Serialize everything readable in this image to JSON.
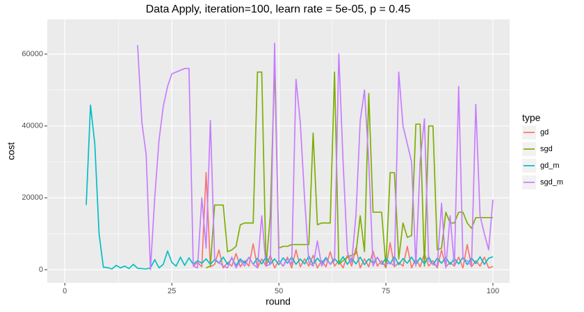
{
  "chart_data": {
    "type": "line",
    "title": "Data Apply, iteration=100, learn rate = 5e-05, p = 0.45",
    "x_label": "round",
    "y_label": "cost",
    "legend_title": "type",
    "legend_position": "right",
    "grid": true,
    "x": [
      5,
      6,
      7,
      8,
      9,
      10,
      11,
      12,
      13,
      14,
      15,
      16,
      17,
      18,
      19,
      20,
      21,
      22,
      23,
      24,
      25,
      26,
      27,
      28,
      29,
      30,
      31,
      32,
      33,
      34,
      35,
      36,
      37,
      38,
      39,
      40,
      41,
      42,
      43,
      44,
      45,
      46,
      47,
      48,
      49,
      50,
      51,
      52,
      53,
      54,
      55,
      56,
      57,
      58,
      59,
      60,
      61,
      62,
      63,
      64,
      65,
      66,
      67,
      68,
      69,
      70,
      71,
      72,
      73,
      74,
      75,
      76,
      77,
      78,
      79,
      80,
      81,
      82,
      83,
      84,
      85,
      86,
      87,
      88,
      89,
      90,
      91,
      92,
      93,
      94,
      95,
      96,
      97,
      98,
      99,
      100
    ],
    "xlim": [
      -4.1,
      103.9
    ],
    "xticks": [
      0,
      25,
      50,
      75,
      100
    ],
    "ylim": [
      -3670,
      69650
    ],
    "yticks": [
      0,
      20000,
      40000,
      60000
    ],
    "series": [
      {
        "name": "gd",
        "color": "#F8766D",
        "values": [
          null,
          null,
          null,
          null,
          null,
          null,
          null,
          null,
          null,
          null,
          null,
          null,
          null,
          null,
          null,
          null,
          null,
          null,
          null,
          null,
          null,
          null,
          null,
          null,
          null,
          1000,
          2000,
          800,
          27000,
          800,
          1500,
          5500,
          500,
          2000,
          1000,
          4500,
          800,
          2500,
          1000,
          7200,
          500,
          3000,
          1000,
          4000,
          500,
          2500,
          1000,
          3500,
          500,
          5500,
          800,
          3000,
          1000,
          4000,
          500,
          2500,
          800,
          5000,
          1000,
          2500,
          500,
          4000,
          1000,
          6000,
          500,
          3000,
          800,
          5200,
          1000,
          2500,
          500,
          7500,
          800,
          2000,
          1000,
          6500,
          500,
          3000,
          800,
          4500,
          1000,
          2500,
          500,
          5500,
          800,
          2000,
          1000,
          3500,
          500,
          7000,
          800,
          2500,
          1000,
          3500,
          500,
          900
        ]
      },
      {
        "name": "sgd",
        "color": "#7CAE00",
        "values": [
          null,
          null,
          null,
          null,
          null,
          null,
          null,
          null,
          null,
          null,
          null,
          null,
          null,
          null,
          null,
          null,
          null,
          null,
          null,
          null,
          null,
          null,
          null,
          null,
          null,
          null,
          null,
          null,
          500,
          1000,
          18000,
          18000,
          18000,
          5000,
          5500,
          6500,
          12500,
          13000,
          13000,
          13000,
          55000,
          55000,
          1000,
          15000,
          57000,
          6000,
          6500,
          6500,
          7000,
          7000,
          7000,
          7000,
          7000,
          38000,
          12500,
          13000,
          13000,
          13000,
          55000,
          1500,
          2500,
          3500,
          4000,
          4500,
          15000,
          5000,
          49000,
          16000,
          16000,
          16000,
          1000,
          27000,
          27000,
          3000,
          13000,
          9000,
          9500,
          40500,
          40500,
          1000,
          40000,
          40000,
          5500,
          6000,
          16000,
          13000,
          13000,
          16000,
          16000,
          13000,
          11500,
          14500,
          14500,
          14500,
          14500,
          14500
        ]
      },
      {
        "name": "gd_m",
        "color": "#00BFC4",
        "values": [
          18000,
          45800,
          35000,
          10000,
          700,
          600,
          200,
          1200,
          500,
          1000,
          300,
          1500,
          400,
          300,
          200,
          500,
          2800,
          500,
          1500,
          5200,
          2000,
          1000,
          3500,
          1200,
          3300,
          1500,
          2500,
          1800,
          3000,
          1500,
          2800,
          1800,
          3500,
          1500,
          3200,
          1200,
          3000,
          1800,
          3400,
          1500,
          3200,
          1600,
          3600,
          1500,
          3000,
          1400,
          3300,
          1800,
          3500,
          1500,
          3000,
          1600,
          3800,
          1400,
          3200,
          1700,
          3400,
          1500,
          3100,
          1800,
          3600,
          1500,
          3200,
          1600,
          3500,
          1400,
          3000,
          1800,
          3400,
          1500,
          3200,
          1600,
          3700,
          1400,
          3100,
          1800,
          3500,
          1500,
          3300,
          1600,
          3600,
          1400,
          3200,
          1800,
          3400,
          1500,
          3100,
          1600,
          3500,
          1400,
          3300,
          1700,
          3600,
          1500,
          3200,
          3600
        ]
      },
      {
        "name": "sgd_m",
        "color": "#C77CFF",
        "values": [
          null,
          null,
          null,
          null,
          null,
          null,
          null,
          null,
          null,
          null,
          null,
          null,
          62500,
          41000,
          32000,
          0,
          20000,
          36000,
          45500,
          51000,
          54500,
          55000,
          55500,
          56000,
          56000,
          1000,
          500,
          20000,
          6000,
          41500,
          3000,
          2000,
          1000,
          500,
          3500,
          500,
          2500,
          1000,
          3500,
          1500,
          500,
          15000,
          1000,
          1500,
          63000,
          2500,
          1000,
          3000,
          1500,
          53000,
          41000,
          20000,
          2000,
          1000,
          8000,
          1000,
          3000,
          1500,
          2500,
          60000,
          30000,
          5000,
          2000,
          15000,
          41500,
          50000,
          30000,
          1000,
          3500,
          1500,
          1500,
          2000,
          1000,
          55000,
          40000,
          35000,
          30000,
          1000,
          30000,
          42000,
          2500,
          1500,
          1000,
          18500,
          500,
          15000,
          1000,
          51000,
          3000,
          2500,
          1000,
          46000,
          15000,
          10000,
          5500,
          19500
        ]
      }
    ]
  }
}
